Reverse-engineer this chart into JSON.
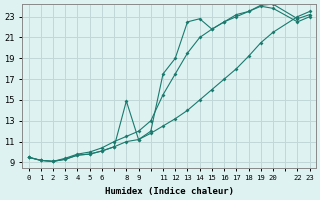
{
  "xlabel": "Humidex (Indice chaleur)",
  "bg_color": "#dff2f2",
  "grid_color": "#c0d8d8",
  "line_color": "#1a7a6e",
  "xlim": [
    -0.5,
    23.5
  ],
  "ylim": [
    8.5,
    24.2
  ],
  "xtick_labels": [
    "0",
    "1",
    "2",
    "3",
    "4",
    "5",
    "6",
    "",
    "8",
    "9",
    "",
    "11",
    "12",
    "13",
    "14",
    "15",
    "16",
    "17",
    "18",
    "19",
    "20",
    "",
    "22",
    "23"
  ],
  "yticks": [
    9,
    11,
    13,
    15,
    17,
    19,
    21,
    23
  ],
  "line1_x": [
    0,
    1,
    2,
    3,
    4,
    5,
    6,
    7,
    8,
    9,
    10,
    11,
    12,
    13,
    14,
    15,
    16,
    17,
    18,
    19,
    20,
    22,
    23
  ],
  "line1_y": [
    9.5,
    9.2,
    9.1,
    9.3,
    9.7,
    9.8,
    10.1,
    10.5,
    11.0,
    11.2,
    11.8,
    12.5,
    13.2,
    14.0,
    15.0,
    16.0,
    17.0,
    18.0,
    19.2,
    20.5,
    21.5,
    23.0,
    23.5
  ],
  "line2_x": [
    0,
    1,
    2,
    3,
    4,
    5,
    6,
    7,
    8,
    9,
    10,
    11,
    12,
    13,
    14,
    15,
    16,
    17,
    18,
    19,
    20,
    22,
    23
  ],
  "line2_y": [
    9.5,
    9.2,
    9.1,
    9.3,
    9.7,
    9.8,
    10.1,
    10.5,
    14.9,
    11.2,
    12.0,
    17.5,
    19.0,
    22.5,
    22.8,
    21.8,
    22.5,
    23.2,
    23.5,
    24.0,
    23.8,
    22.5,
    23.0
  ],
  "line3_x": [
    0,
    1,
    2,
    3,
    4,
    5,
    6,
    7,
    8,
    9,
    10,
    11,
    12,
    13,
    14,
    15,
    16,
    17,
    18,
    19,
    20,
    22,
    23
  ],
  "line3_y": [
    9.5,
    9.2,
    9.1,
    9.4,
    9.8,
    10.0,
    10.4,
    11.0,
    11.5,
    12.0,
    13.0,
    15.5,
    17.5,
    19.5,
    21.0,
    21.8,
    22.5,
    23.0,
    23.5,
    24.1,
    24.2,
    22.8,
    23.2
  ]
}
